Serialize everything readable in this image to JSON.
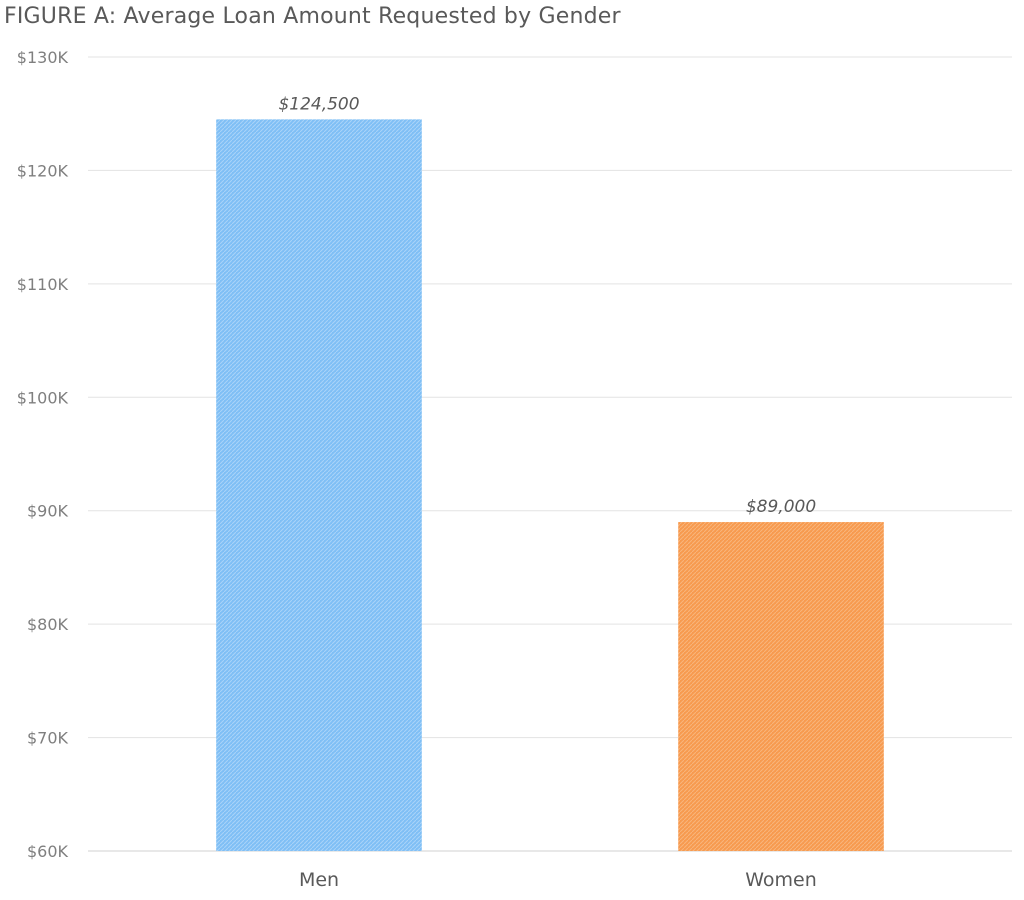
{
  "chart_data": {
    "type": "bar",
    "title": "FIGURE A: Average Loan Amount Requested by Gender",
    "xlabel": "",
    "ylabel": "",
    "categories": [
      "Men",
      "Women"
    ],
    "values": [
      124500,
      89000
    ],
    "data_labels": [
      "$124,500",
      "$89,000"
    ],
    "bar_colors": [
      "#7fbff5",
      "#f79a4f"
    ],
    "ylim": [
      60000,
      130000
    ],
    "y_ticks": [
      60000,
      70000,
      80000,
      90000,
      100000,
      110000,
      120000,
      130000
    ],
    "y_tick_labels": [
      "$60K",
      "$70K",
      "$80K",
      "$90K",
      "$100K",
      "$110K",
      "$120K",
      "$130K"
    ],
    "grid": true,
    "legend": "none"
  }
}
